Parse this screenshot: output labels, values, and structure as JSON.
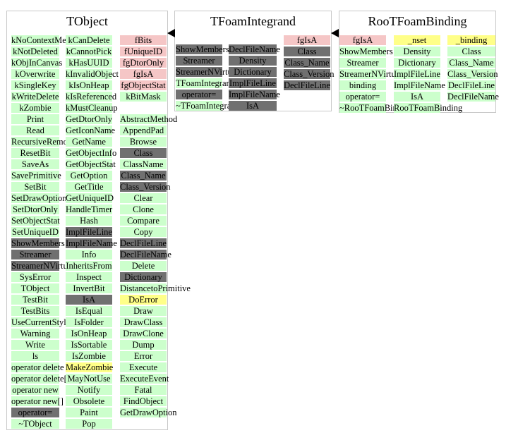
{
  "colors": {
    "public": "#ccffcc",
    "protected": "#707070",
    "private": "#f5c6c6",
    "virtual": "#ffff88"
  },
  "classes": [
    {
      "name": "TObject",
      "columns": [
        [
          [
            "kNoContextMenu",
            "pub"
          ],
          [
            "kNotDeleted",
            "pub"
          ],
          [
            "kObjInCanvas",
            "pub"
          ],
          [
            "kOverwrite",
            "pub"
          ],
          [
            "kSingleKey",
            "pub"
          ],
          [
            "kWriteDelete",
            "pub"
          ],
          [
            "kZombie",
            "pub"
          ],
          [
            "Print",
            "pub"
          ],
          [
            "Read",
            "pub"
          ],
          [
            "RecursiveRemove",
            "pub"
          ],
          [
            "ResetBit",
            "pub"
          ],
          [
            "SaveAs",
            "pub"
          ],
          [
            "SavePrimitive",
            "pub"
          ],
          [
            "SetBit",
            "pub"
          ],
          [
            "SetDrawOption",
            "pub"
          ],
          [
            "SetDtorOnly",
            "pub"
          ],
          [
            "SetObjectStat",
            "pub"
          ],
          [
            "SetUniqueID",
            "pub"
          ],
          [
            "ShowMembers",
            "prot"
          ],
          [
            "Streamer",
            "prot"
          ],
          [
            "StreamerNVirtual",
            "prot"
          ],
          [
            "SysError",
            "pub"
          ],
          [
            "TObject",
            "pub"
          ],
          [
            "TestBit",
            "pub"
          ],
          [
            "TestBits",
            "pub"
          ],
          [
            "UseCurrentStyle",
            "pub"
          ],
          [
            "Warning",
            "pub"
          ],
          [
            "Write",
            "pub"
          ],
          [
            "ls",
            "pub"
          ],
          [
            "operator delete",
            "pub"
          ],
          [
            "operator delete[]",
            "pub"
          ],
          [
            "operator new",
            "pub"
          ],
          [
            "operator new[]",
            "pub"
          ],
          [
            "operator=",
            "prot"
          ],
          [
            "~TObject",
            "pub"
          ]
        ],
        [
          [
            "kCanDelete",
            "pub"
          ],
          [
            "kCannotPick",
            "pub"
          ],
          [
            "kHasUUID",
            "pub"
          ],
          [
            "kInvalidObject",
            "pub"
          ],
          [
            "kIsOnHeap",
            "pub"
          ],
          [
            "kIsReferenced",
            "pub"
          ],
          [
            "kMustCleanup",
            "pub"
          ],
          [
            "GetDtorOnly",
            "pub"
          ],
          [
            "GetIconName",
            "pub"
          ],
          [
            "GetName",
            "pub"
          ],
          [
            "GetObjectInfo",
            "pub"
          ],
          [
            "GetObjectStat",
            "pub"
          ],
          [
            "GetOption",
            "pub"
          ],
          [
            "GetTitle",
            "pub"
          ],
          [
            "GetUniqueID",
            "pub"
          ],
          [
            "HandleTimer",
            "pub"
          ],
          [
            "Hash",
            "pub"
          ],
          [
            "ImplFileLine",
            "prot"
          ],
          [
            "ImplFileName",
            "prot"
          ],
          [
            "Info",
            "pub"
          ],
          [
            "InheritsFrom",
            "pub"
          ],
          [
            "Inspect",
            "pub"
          ],
          [
            "InvertBit",
            "pub"
          ],
          [
            "IsA",
            "prot"
          ],
          [
            "IsEqual",
            "pub"
          ],
          [
            "IsFolder",
            "pub"
          ],
          [
            "IsOnHeap",
            "pub"
          ],
          [
            "IsSortable",
            "pub"
          ],
          [
            "IsZombie",
            "pub"
          ],
          [
            "MakeZombie",
            "virt"
          ],
          [
            "MayNotUse",
            "pub"
          ],
          [
            "Notify",
            "pub"
          ],
          [
            "Obsolete",
            "pub"
          ],
          [
            "Paint",
            "pub"
          ],
          [
            "Pop",
            "pub"
          ]
        ],
        [
          [
            "fBits",
            "priv"
          ],
          [
            "fUniqueID",
            "priv"
          ],
          [
            "fgDtorOnly",
            "priv"
          ],
          [
            "fgIsA",
            "priv"
          ],
          [
            "fgObjectStat",
            "priv"
          ],
          [
            "kBitMask",
            "pub"
          ],
          [
            "",
            ""
          ],
          [
            "AbstractMethod",
            "pub"
          ],
          [
            "AppendPad",
            "pub"
          ],
          [
            "Browse",
            "pub"
          ],
          [
            "Class",
            "prot"
          ],
          [
            "ClassName",
            "pub"
          ],
          [
            "Class_Name",
            "prot"
          ],
          [
            "Class_Version",
            "prot"
          ],
          [
            "Clear",
            "pub"
          ],
          [
            "Clone",
            "pub"
          ],
          [
            "Compare",
            "pub"
          ],
          [
            "Copy",
            "pub"
          ],
          [
            "DeclFileLine",
            "prot"
          ],
          [
            "DeclFileName",
            "prot"
          ],
          [
            "Delete",
            "pub"
          ],
          [
            "Dictionary",
            "prot"
          ],
          [
            "DistancetoPrimitive",
            "pub"
          ],
          [
            "DoError",
            "virt"
          ],
          [
            "Draw",
            "pub"
          ],
          [
            "DrawClass",
            "pub"
          ],
          [
            "DrawClone",
            "pub"
          ],
          [
            "Dump",
            "pub"
          ],
          [
            "Error",
            "pub"
          ],
          [
            "Execute",
            "pub"
          ],
          [
            "ExecuteEvent",
            "pub"
          ],
          [
            "Fatal",
            "pub"
          ],
          [
            "FindObject",
            "pub"
          ],
          [
            "GetDrawOption",
            "pub"
          ]
        ]
      ]
    },
    {
      "name": "TFoamIntegrand",
      "columns": [
        [
          [
            "ShowMembers",
            "prot"
          ],
          [
            "Streamer",
            "prot"
          ],
          [
            "StreamerNVirtual",
            "prot"
          ],
          [
            "TFoamIntegrand",
            "pub"
          ],
          [
            "operator=",
            "prot"
          ],
          [
            "~TFoamIntegrand",
            "pub"
          ]
        ],
        [
          [
            "DeclFileName",
            "prot"
          ],
          [
            "Density",
            "prot"
          ],
          [
            "Dictionary",
            "prot"
          ],
          [
            "ImplFileLine",
            "prot"
          ],
          [
            "ImplFileName",
            "prot"
          ],
          [
            "IsA",
            "prot"
          ]
        ],
        [
          [
            "fgIsA",
            "priv"
          ],
          [
            "Class",
            "prot"
          ],
          [
            "Class_Name",
            "prot"
          ],
          [
            "Class_Version",
            "prot"
          ],
          [
            "DeclFileLine",
            "prot"
          ]
        ]
      ]
    },
    {
      "name": "RooTFoamBinding",
      "columns": [
        [
          [
            "fgIsA",
            "priv"
          ],
          [
            "ShowMembers",
            "pub"
          ],
          [
            "Streamer",
            "pub"
          ],
          [
            "StreamerNVirtual",
            "pub"
          ],
          [
            "binding",
            "pub"
          ],
          [
            "operator=",
            "pub"
          ],
          [
            "~RooTFoamBinding",
            "pub"
          ]
        ],
        [
          [
            "_nset",
            "virt"
          ],
          [
            "Density",
            "pub"
          ],
          [
            "Dictionary",
            "pub"
          ],
          [
            "ImplFileLine",
            "pub"
          ],
          [
            "ImplFileName",
            "pub"
          ],
          [
            "IsA",
            "pub"
          ],
          [
            "RooTFoamBinding",
            "pub"
          ]
        ],
        [
          [
            "_binding",
            "virt"
          ],
          [
            "Class",
            "pub"
          ],
          [
            "Class_Name",
            "pub"
          ],
          [
            "Class_Version",
            "pub"
          ],
          [
            "DeclFileLine",
            "pub"
          ],
          [
            "DeclFileName",
            "pub"
          ]
        ]
      ]
    }
  ]
}
